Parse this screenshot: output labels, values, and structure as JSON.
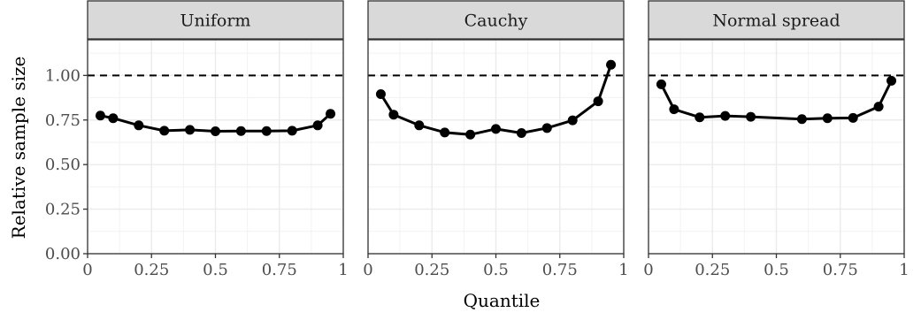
{
  "chart_data": {
    "type": "line",
    "xlabel": "Quantile",
    "ylabel": "Relative sample size",
    "xlim": [
      0,
      1
    ],
    "ylim": [
      0,
      1.2
    ],
    "x_ticks": [
      0,
      0.25,
      0.5,
      0.75,
      1
    ],
    "x_tick_labels": [
      "0",
      "0.25",
      "0.5",
      "0.75",
      "1"
    ],
    "y_ticks": [
      0,
      0.25,
      0.5,
      0.75,
      1
    ],
    "y_tick_labels": [
      "0.00",
      "0.25",
      "0.50",
      "0.75",
      "1.00"
    ],
    "reference_line": {
      "y": 1.0,
      "style": "dashed"
    },
    "grid": true,
    "panels": [
      {
        "name": "Uniform",
        "x": [
          0.05,
          0.1,
          0.2,
          0.3,
          0.4,
          0.5,
          0.6,
          0.7,
          0.8,
          0.9,
          0.95
        ],
        "y": [
          0.775,
          0.76,
          0.72,
          0.69,
          0.695,
          0.687,
          0.688,
          0.688,
          0.69,
          0.72,
          0.785
        ]
      },
      {
        "name": "Cauchy",
        "x": [
          0.05,
          0.1,
          0.2,
          0.3,
          0.4,
          0.5,
          0.6,
          0.7,
          0.8,
          0.9,
          0.95
        ],
        "y": [
          0.895,
          0.78,
          0.72,
          0.68,
          0.668,
          0.7,
          0.677,
          0.705,
          0.748,
          0.855,
          1.06
        ]
      },
      {
        "name": "Normal spread",
        "x": [
          0.05,
          0.1,
          0.2,
          0.3,
          0.4,
          0.6,
          0.7,
          0.8,
          0.9,
          0.95
        ],
        "y": [
          0.95,
          0.81,
          0.765,
          0.773,
          0.768,
          0.755,
          0.76,
          0.762,
          0.825,
          0.97
        ]
      }
    ]
  }
}
